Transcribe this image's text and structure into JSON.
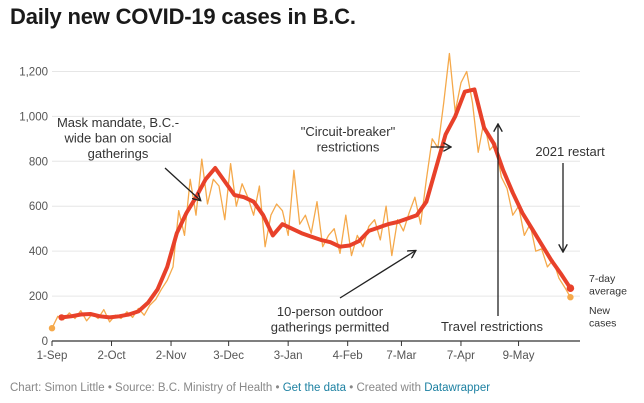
{
  "title": "Daily new COVID-19 cases in B.C.",
  "footer": {
    "chart_by": "Chart: Simon Little",
    "source": "Source: B.C. Ministry of Health",
    "get_data": "Get the data",
    "created_with": "Created with",
    "tool": "Datawrapper",
    "sep": "•"
  },
  "colors": {
    "daily_line": "#f5a94b",
    "average_line": "#e8412a",
    "new_cases_dot": "#f5a94b",
    "grid": "#e6e6e6",
    "axis": "#333333"
  },
  "chart_data": {
    "type": "line",
    "title": "Daily new COVID-19 cases in B.C.",
    "xlabel": "",
    "ylabel": "",
    "xlim": [
      0,
      275
    ],
    "ylim": [
      0,
      1300
    ],
    "y_ticks": [
      0,
      200,
      400,
      600,
      800,
      1000,
      1200
    ],
    "y_tick_labels": [
      "0",
      "200",
      "400",
      "600",
      "800",
      "1,000",
      "1,200"
    ],
    "x_ticks": [
      0,
      31,
      62,
      92,
      123,
      154,
      182,
      213,
      243
    ],
    "x_tick_labels": [
      "1-Sep",
      "2-Oct",
      "2-Nov",
      "3-Dec",
      "3-Jan",
      "4-Feb",
      "7-Mar",
      "7-Apr",
      "9-May"
    ],
    "grid": true,
    "series": [
      {
        "name": "New cases",
        "x": [
          0,
          3,
          6,
          9,
          12,
          15,
          18,
          21,
          24,
          27,
          30,
          33,
          36,
          39,
          42,
          45,
          48,
          51,
          54,
          57,
          60,
          63,
          66,
          69,
          72,
          75,
          78,
          81,
          84,
          87,
          90,
          93,
          96,
          99,
          102,
          105,
          108,
          111,
          114,
          117,
          120,
          123,
          126,
          129,
          132,
          135,
          138,
          141,
          144,
          147,
          150,
          153,
          156,
          159,
          162,
          165,
          168,
          171,
          174,
          177,
          180,
          183,
          186,
          189,
          192,
          195,
          198,
          201,
          204,
          207,
          210,
          213,
          216,
          219,
          222,
          225,
          228,
          231,
          234,
          237,
          240,
          243,
          246,
          249,
          252,
          255,
          258,
          261,
          264,
          267,
          270
        ],
        "values": [
          57,
          110,
          95,
          125,
          100,
          135,
          90,
          120,
          100,
          140,
          85,
          115,
          100,
          130,
          105,
          145,
          115,
          160,
          185,
          230,
          270,
          330,
          580,
          470,
          720,
          560,
          810,
          610,
          720,
          690,
          540,
          790,
          600,
          700,
          640,
          560,
          690,
          420,
          560,
          610,
          580,
          470,
          760,
          520,
          560,
          480,
          620,
          420,
          470,
          500,
          390,
          560,
          380,
          470,
          420,
          510,
          540,
          450,
          600,
          380,
          540,
          490,
          570,
          640,
          520,
          720,
          900,
          860,
          1060,
          1280,
          1020,
          1150,
          1200,
          1060,
          840,
          980,
          850,
          880,
          730,
          680,
          560,
          600,
          470,
          520,
          400,
          410,
          330,
          360,
          280,
          240,
          195
        ]
      },
      {
        "name": "7-day average",
        "x": [
          5,
          10,
          15,
          20,
          25,
          30,
          35,
          40,
          45,
          50,
          55,
          60,
          65,
          70,
          75,
          80,
          85,
          90,
          95,
          100,
          105,
          110,
          115,
          120,
          125,
          130,
          135,
          140,
          145,
          150,
          155,
          160,
          165,
          170,
          175,
          180,
          185,
          190,
          195,
          200,
          205,
          210,
          215,
          220,
          225,
          230,
          235,
          240,
          245,
          250,
          255,
          260,
          265,
          270
        ],
        "values": [
          105,
          110,
          118,
          120,
          110,
          105,
          110,
          118,
          132,
          170,
          230,
          330,
          480,
          570,
          640,
          720,
          770,
          710,
          650,
          640,
          620,
          560,
          470,
          520,
          500,
          480,
          465,
          450,
          440,
          420,
          425,
          445,
          490,
          505,
          520,
          530,
          545,
          560,
          620,
          770,
          920,
          1000,
          1110,
          1120,
          950,
          880,
          760,
          660,
          570,
          500,
          430,
          360,
          300,
          235
        ]
      }
    ],
    "annotations": [
      {
        "lines": [
          "Mask mandate, B.C.-",
          "wide ban on social",
          "gatherings"
        ]
      },
      {
        "lines": [
          "\"Circuit-breaker\"",
          "restrictions"
        ]
      },
      {
        "lines": [
          "10-person outdoor",
          "gatherings permitted"
        ]
      },
      {
        "lines": [
          "Travel restrictions"
        ]
      },
      {
        "lines": [
          "2021 restart"
        ]
      }
    ],
    "legend": [
      {
        "name": "7-day average",
        "lines": [
          "7-day",
          "average"
        ]
      },
      {
        "name": "New cases",
        "lines": [
          "New",
          "cases"
        ]
      }
    ]
  }
}
